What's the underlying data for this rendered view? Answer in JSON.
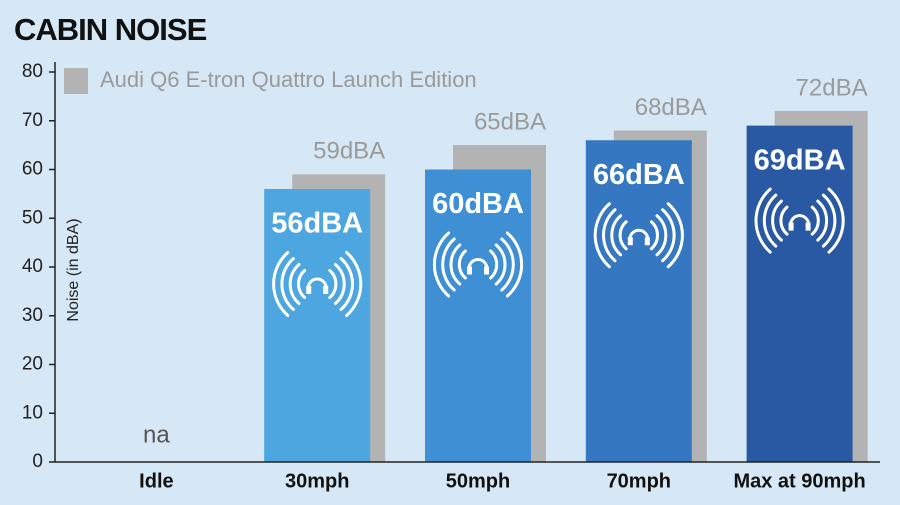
{
  "chart_data": {
    "type": "bar",
    "title": "CABIN NOISE",
    "y_label": "Noise (in dBA)",
    "categories": [
      "Idle",
      "30mph",
      "50mph",
      "70mph",
      "Max at 90mph"
    ],
    "series": [
      {
        "colors": [
          "#4da6e0",
          "#4da6e0",
          "#3e8fd4",
          "#3577c0",
          "#2a59a3"
        ],
        "values": [
          null,
          56,
          60,
          66,
          69
        ],
        "value_labels": [
          "na",
          "56dBA",
          "60dBA",
          "66dBA",
          "69dBA"
        ]
      },
      {
        "name": "Audi Q6 E-tron Quattro Launch Edition",
        "color": "#b3b3b3",
        "values": [
          null,
          59,
          65,
          68,
          72
        ],
        "value_labels": [
          null,
          "59dBA",
          "65dBA",
          "68dBA",
          "72dBA"
        ]
      }
    ],
    "ylim": [
      0,
      80
    ],
    "yticks": [
      0,
      10,
      20,
      30,
      40,
      50,
      60,
      70,
      80
    ]
  }
}
